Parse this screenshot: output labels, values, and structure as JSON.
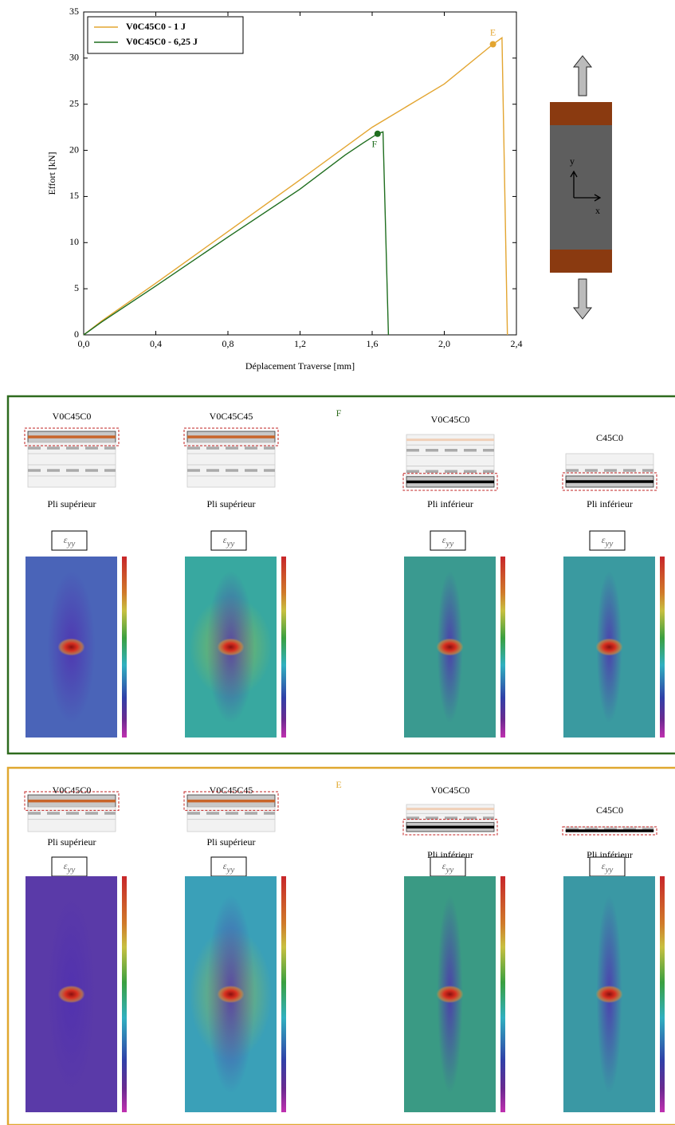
{
  "chart_data": {
    "type": "line",
    "xlabel": "Déplacement Traverse [mm]",
    "ylabel": "Effort [kN]",
    "xlim": [
      0,
      2.4
    ],
    "ylim": [
      0,
      35
    ],
    "xticks": [
      {
        "value": 0,
        "label": "0,0"
      },
      {
        "value": 0.4,
        "label": "0,4"
      },
      {
        "value": 0.8,
        "label": "0,8"
      },
      {
        "value": 1.2,
        "label": "1,2"
      },
      {
        "value": 1.6,
        "label": "1,6"
      },
      {
        "value": 2.0,
        "label": "2,0"
      },
      {
        "value": 2.4,
        "label": "2,4"
      }
    ],
    "yticks": [
      0,
      5,
      10,
      15,
      20,
      25,
      30,
      35
    ],
    "legend": "upper left",
    "series": [
      {
        "name": "V0C45C0 - 1 J",
        "color": "#e3a530",
        "x": [
          0,
          0.1,
          0.4,
          0.8,
          1.2,
          1.6,
          2.0,
          2.27,
          2.32,
          2.35
        ],
        "values": [
          0,
          1.5,
          5.6,
          11.2,
          16.8,
          22.5,
          27.2,
          31.5,
          32.2,
          0
        ]
      },
      {
        "name": "V0C45C0 - 6,25 J",
        "color": "#1f6e1f",
        "x": [
          0,
          0.1,
          0.4,
          0.8,
          1.2,
          1.45,
          1.55,
          1.63,
          1.66,
          1.69
        ],
        "values": [
          0,
          1.4,
          5.3,
          10.6,
          15.8,
          19.5,
          20.8,
          21.8,
          22,
          0
        ]
      }
    ],
    "annotations": [
      {
        "text": "E",
        "x": 2.27,
        "y": 31.5,
        "color": "#e3a530"
      },
      {
        "text": "F",
        "x": 1.63,
        "y": 21.8,
        "color": "#1f6e1f"
      }
    ]
  },
  "specimen": {
    "y_axis": "y",
    "x_axis": "x"
  },
  "panels": [
    {
      "label": "F",
      "color": "#2e6b1e",
      "columns": [
        {
          "title": "V0C45C0",
          "caption": "Pli supérieur",
          "strain_symbol": "ε",
          "strain_subscript": "yy"
        },
        {
          "title": "V0C45C45",
          "caption": "Pli supérieur",
          "strain_symbol": "ε",
          "strain_subscript": "yy"
        },
        {
          "title": "V0C45C0",
          "caption": "Pli inférieur",
          "strain_symbol": "ε",
          "strain_subscript": "yy"
        },
        {
          "title": "C45C0",
          "caption": "Pli inférieur",
          "strain_symbol": "ε",
          "strain_subscript": "yy"
        }
      ]
    },
    {
      "label": "E",
      "color": "#e0a830",
      "columns": [
        {
          "title": "V0C45C0",
          "caption": "Pli supérieur",
          "strain_symbol": "ε",
          "strain_subscript": "yy"
        },
        {
          "title": "V0C45C45",
          "caption": "Pli supérieur",
          "strain_symbol": "ε",
          "strain_subscript": "yy"
        },
        {
          "title": "V0C45C0",
          "caption": "Pli inférieur",
          "strain_symbol": "ε",
          "strain_subscript": "yy"
        },
        {
          "title": "C45C0",
          "caption": "Pli inférieur",
          "strain_symbol": "ε",
          "strain_subscript": "yy"
        }
      ]
    }
  ]
}
